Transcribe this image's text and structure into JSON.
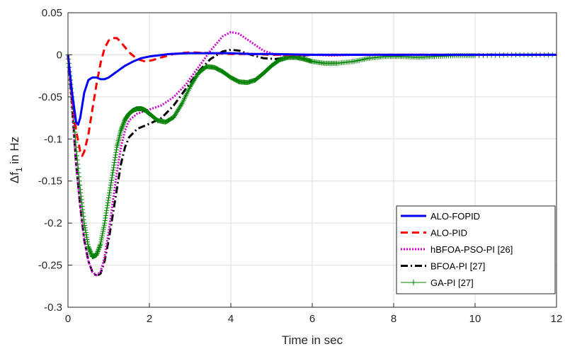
{
  "chart_data": {
    "type": "line",
    "title": "",
    "xlabel": "Time in sec",
    "ylabel": "Δf",
    "ylabel_sub": "1",
    "ylabel_suffix": " in Hz",
    "xlim": [
      0,
      12
    ],
    "ylim": [
      -0.3,
      0.05
    ],
    "x_ticks": [
      0,
      2,
      4,
      6,
      8,
      10,
      12
    ],
    "y_ticks": [
      -0.3,
      -0.25,
      -0.2,
      -0.15,
      -0.1,
      -0.05,
      0,
      0.05
    ],
    "x_tick_labels": [
      "0",
      "2",
      "4",
      "6",
      "8",
      "10",
      "12"
    ],
    "y_tick_labels": [
      "-0.3",
      "-0.25",
      "-0.2",
      "-0.15",
      "-0.1",
      "-0.05",
      "0",
      "0.05"
    ],
    "grid": true,
    "legend_position": "bottom-right",
    "series": [
      {
        "name": "ALO-FOPID",
        "color": "#0000ff",
        "style": "solid",
        "points": [
          [
            0,
            0
          ],
          [
            0.1,
            -0.045
          ],
          [
            0.2,
            -0.08
          ],
          [
            0.25,
            -0.083
          ],
          [
            0.3,
            -0.075
          ],
          [
            0.4,
            -0.045
          ],
          [
            0.5,
            -0.03
          ],
          [
            0.6,
            -0.027
          ],
          [
            0.7,
            -0.027
          ],
          [
            0.8,
            -0.029
          ],
          [
            0.9,
            -0.029
          ],
          [
            1.0,
            -0.027
          ],
          [
            1.2,
            -0.02
          ],
          [
            1.4,
            -0.013
          ],
          [
            1.6,
            -0.008
          ],
          [
            1.8,
            -0.004
          ],
          [
            2.0,
            -0.002
          ],
          [
            2.5,
            0.001
          ],
          [
            3.0,
            0.002
          ],
          [
            3.5,
            0.002
          ],
          [
            4.0,
            0.002
          ],
          [
            4.5,
            0.001
          ],
          [
            5.0,
            0.001
          ],
          [
            6.0,
            0
          ],
          [
            8.0,
            0
          ],
          [
            10.0,
            0
          ],
          [
            12.0,
            0
          ]
        ]
      },
      {
        "name": "ALO-PID",
        "color": "#ff0000",
        "style": "dashed",
        "points": [
          [
            0,
            0
          ],
          [
            0.1,
            -0.05
          ],
          [
            0.2,
            -0.09
          ],
          [
            0.3,
            -0.115
          ],
          [
            0.35,
            -0.12
          ],
          [
            0.4,
            -0.115
          ],
          [
            0.5,
            -0.095
          ],
          [
            0.6,
            -0.065
          ],
          [
            0.7,
            -0.035
          ],
          [
            0.8,
            -0.01
          ],
          [
            0.9,
            0.008
          ],
          [
            1.0,
            0.017
          ],
          [
            1.1,
            0.02
          ],
          [
            1.2,
            0.02
          ],
          [
            1.3,
            0.015
          ],
          [
            1.5,
            0.003
          ],
          [
            1.7,
            -0.005
          ],
          [
            1.9,
            -0.008
          ],
          [
            2.1,
            -0.006
          ],
          [
            2.3,
            -0.003
          ],
          [
            2.6,
            0.001
          ],
          [
            3.0,
            0.003
          ],
          [
            3.5,
            0.002
          ],
          [
            4.0,
            0.001
          ],
          [
            4.5,
            0.001
          ],
          [
            5.0,
            0
          ],
          [
            6.0,
            0
          ],
          [
            8.0,
            0
          ],
          [
            12.0,
            0
          ]
        ]
      },
      {
        "name": "hBFOA-PSO-PI [26]",
        "color": "#cc00cc",
        "style": "dotted",
        "points": [
          [
            0,
            0
          ],
          [
            0.1,
            -0.06
          ],
          [
            0.2,
            -0.13
          ],
          [
            0.3,
            -0.18
          ],
          [
            0.4,
            -0.22
          ],
          [
            0.5,
            -0.245
          ],
          [
            0.6,
            -0.258
          ],
          [
            0.7,
            -0.262
          ],
          [
            0.8,
            -0.258
          ],
          [
            0.9,
            -0.24
          ],
          [
            1.0,
            -0.21
          ],
          [
            1.1,
            -0.175
          ],
          [
            1.2,
            -0.14
          ],
          [
            1.3,
            -0.11
          ],
          [
            1.4,
            -0.09
          ],
          [
            1.5,
            -0.078
          ],
          [
            1.7,
            -0.07
          ],
          [
            2.0,
            -0.065
          ],
          [
            2.3,
            -0.06
          ],
          [
            2.6,
            -0.05
          ],
          [
            2.9,
            -0.035
          ],
          [
            3.2,
            -0.015
          ],
          [
            3.5,
            0.005
          ],
          [
            3.8,
            0.022
          ],
          [
            4.0,
            0.027
          ],
          [
            4.2,
            0.025
          ],
          [
            4.5,
            0.015
          ],
          [
            4.8,
            0.005
          ],
          [
            5.1,
            0
          ],
          [
            5.5,
            -0.001
          ],
          [
            6.0,
            0
          ],
          [
            6.5,
            -0.001
          ],
          [
            7.0,
            0
          ],
          [
            8.0,
            0
          ],
          [
            12.0,
            0
          ]
        ]
      },
      {
        "name": "BFOA-PI [27]",
        "color": "#000000",
        "style": "dashdot",
        "points": [
          [
            0,
            0
          ],
          [
            0.1,
            -0.06
          ],
          [
            0.2,
            -0.13
          ],
          [
            0.3,
            -0.18
          ],
          [
            0.4,
            -0.22
          ],
          [
            0.5,
            -0.245
          ],
          [
            0.6,
            -0.258
          ],
          [
            0.7,
            -0.263
          ],
          [
            0.8,
            -0.26
          ],
          [
            0.9,
            -0.245
          ],
          [
            1.0,
            -0.22
          ],
          [
            1.1,
            -0.19
          ],
          [
            1.2,
            -0.16
          ],
          [
            1.3,
            -0.13
          ],
          [
            1.4,
            -0.11
          ],
          [
            1.5,
            -0.098
          ],
          [
            1.7,
            -0.088
          ],
          [
            2.0,
            -0.082
          ],
          [
            2.3,
            -0.075
          ],
          [
            2.6,
            -0.06
          ],
          [
            2.9,
            -0.04
          ],
          [
            3.2,
            -0.02
          ],
          [
            3.5,
            -0.005
          ],
          [
            3.8,
            0.004
          ],
          [
            4.0,
            0.006
          ],
          [
            4.2,
            0.005
          ],
          [
            4.5,
            0
          ],
          [
            4.8,
            -0.004
          ],
          [
            5.1,
            -0.005
          ],
          [
            5.5,
            -0.002
          ],
          [
            6.0,
            0
          ],
          [
            6.5,
            0
          ],
          [
            7.0,
            0
          ],
          [
            8.0,
            0
          ],
          [
            12.0,
            0
          ]
        ]
      },
      {
        "name": "GA-PI [27]",
        "color": "#008000",
        "style": "solid-plus",
        "points": [
          [
            0,
            0
          ],
          [
            0.1,
            -0.05
          ],
          [
            0.2,
            -0.11
          ],
          [
            0.3,
            -0.16
          ],
          [
            0.4,
            -0.2
          ],
          [
            0.5,
            -0.228
          ],
          [
            0.6,
            -0.24
          ],
          [
            0.7,
            -0.238
          ],
          [
            0.8,
            -0.225
          ],
          [
            0.9,
            -0.2
          ],
          [
            1.0,
            -0.17
          ],
          [
            1.1,
            -0.14
          ],
          [
            1.2,
            -0.11
          ],
          [
            1.3,
            -0.09
          ],
          [
            1.4,
            -0.077
          ],
          [
            1.5,
            -0.07
          ],
          [
            1.6,
            -0.066
          ],
          [
            1.7,
            -0.064
          ],
          [
            1.8,
            -0.064
          ],
          [
            1.9,
            -0.066
          ],
          [
            2.0,
            -0.07
          ],
          [
            2.2,
            -0.078
          ],
          [
            2.4,
            -0.08
          ],
          [
            2.6,
            -0.074
          ],
          [
            2.8,
            -0.058
          ],
          [
            3.0,
            -0.038
          ],
          [
            3.2,
            -0.022
          ],
          [
            3.4,
            -0.014
          ],
          [
            3.6,
            -0.015
          ],
          [
            3.8,
            -0.02
          ],
          [
            4.0,
            -0.027
          ],
          [
            4.2,
            -0.032
          ],
          [
            4.4,
            -0.033
          ],
          [
            4.6,
            -0.03
          ],
          [
            4.8,
            -0.022
          ],
          [
            5.0,
            -0.013
          ],
          [
            5.2,
            -0.006
          ],
          [
            5.4,
            -0.003
          ],
          [
            5.6,
            -0.003
          ],
          [
            5.8,
            -0.005
          ],
          [
            6.0,
            -0.008
          ],
          [
            6.3,
            -0.01
          ],
          [
            6.6,
            -0.01
          ],
          [
            7.0,
            -0.008
          ],
          [
            7.4,
            -0.004
          ],
          [
            7.8,
            -0.002
          ],
          [
            8.2,
            -0.002
          ],
          [
            8.6,
            -0.003
          ],
          [
            9.0,
            -0.002
          ],
          [
            9.5,
            -0.001
          ],
          [
            10.0,
            -0.001
          ],
          [
            11.0,
            0
          ],
          [
            12.0,
            0
          ]
        ]
      }
    ]
  }
}
